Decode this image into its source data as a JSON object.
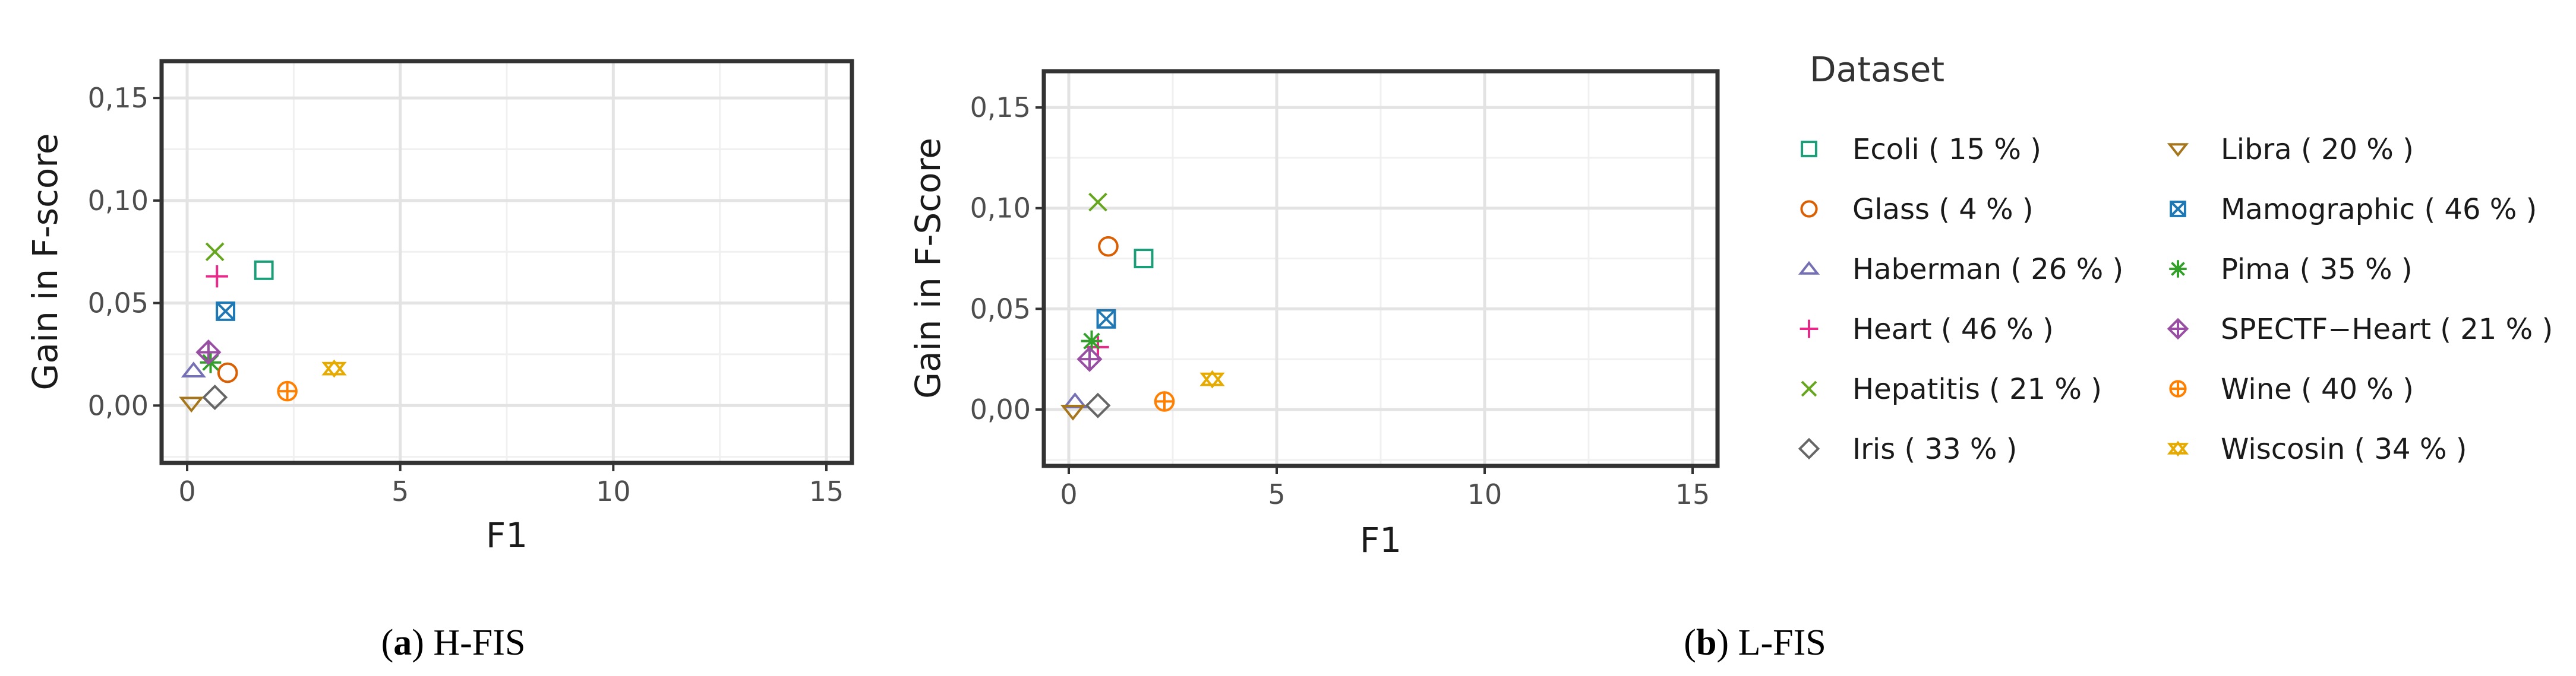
{
  "chart_data": [
    {
      "type": "scatter",
      "panel": "a",
      "caption_letter": "a",
      "caption_text": "H-FIS",
      "xlabel": "F1",
      "ylabel": "Gain in F-score",
      "xlim": [
        -0.6,
        15.6
      ],
      "ylim": [
        -0.028,
        0.168
      ],
      "x_ticks": [
        {
          "v": 0,
          "label": "0"
        },
        {
          "v": 5,
          "label": "5"
        },
        {
          "v": 10,
          "label": "10"
        },
        {
          "v": 15,
          "label": "15"
        }
      ],
      "y_ticks": [
        {
          "v": 0.0,
          "label": "0,00"
        },
        {
          "v": 0.05,
          "label": "0,05"
        },
        {
          "v": 0.1,
          "label": "0,10"
        },
        {
          "v": 0.15,
          "label": "0,15"
        }
      ],
      "grid": true,
      "points": [
        {
          "dataset": "Ecoli",
          "x": 1.8,
          "y": 0.066
        },
        {
          "dataset": "Glass",
          "x": 0.95,
          "y": 0.016
        },
        {
          "dataset": "Haberman",
          "x": 0.15,
          "y": 0.017
        },
        {
          "dataset": "Heart",
          "x": 0.7,
          "y": 0.063
        },
        {
          "dataset": "Hepatitis",
          "x": 0.65,
          "y": 0.075
        },
        {
          "dataset": "Iris",
          "x": 0.65,
          "y": 0.004
        },
        {
          "dataset": "Libra",
          "x": 0.1,
          "y": 0.001
        },
        {
          "dataset": "Mamographic",
          "x": 0.9,
          "y": 0.046
        },
        {
          "dataset": "Pima",
          "x": 0.55,
          "y": 0.021
        },
        {
          "dataset": "SPECTF-Heart",
          "x": 0.5,
          "y": 0.026
        },
        {
          "dataset": "Wine",
          "x": 2.35,
          "y": 0.007
        },
        {
          "dataset": "Wiscosin",
          "x": 3.45,
          "y": 0.018
        }
      ]
    },
    {
      "type": "scatter",
      "panel": "b",
      "caption_letter": "b",
      "caption_text": "L-FIS",
      "xlabel": "F1",
      "ylabel": "Gain in F-Score",
      "xlim": [
        -0.6,
        15.6
      ],
      "ylim": [
        -0.028,
        0.168
      ],
      "x_ticks": [
        {
          "v": 0,
          "label": "0"
        },
        {
          "v": 5,
          "label": "5"
        },
        {
          "v": 10,
          "label": "10"
        },
        {
          "v": 15,
          "label": "15"
        }
      ],
      "y_ticks": [
        {
          "v": 0.0,
          "label": "0,00"
        },
        {
          "v": 0.05,
          "label": "0,05"
        },
        {
          "v": 0.1,
          "label": "0,10"
        },
        {
          "v": 0.15,
          "label": "0,15"
        }
      ],
      "grid": true,
      "points": [
        {
          "dataset": "Ecoli",
          "x": 1.8,
          "y": 0.075
        },
        {
          "dataset": "Glass",
          "x": 0.95,
          "y": 0.081
        },
        {
          "dataset": "Haberman",
          "x": 0.15,
          "y": 0.004
        },
        {
          "dataset": "Heart",
          "x": 0.7,
          "y": 0.031
        },
        {
          "dataset": "Hepatitis",
          "x": 0.7,
          "y": 0.103
        },
        {
          "dataset": "Iris",
          "x": 0.7,
          "y": 0.002
        },
        {
          "dataset": "Libra",
          "x": 0.1,
          "y": -0.001
        },
        {
          "dataset": "Mamographic",
          "x": 0.9,
          "y": 0.045
        },
        {
          "dataset": "Pima",
          "x": 0.55,
          "y": 0.034
        },
        {
          "dataset": "SPECTF-Heart",
          "x": 0.5,
          "y": 0.025
        },
        {
          "dataset": "Wine",
          "x": 2.3,
          "y": 0.004
        },
        {
          "dataset": "Wiscosin",
          "x": 3.45,
          "y": 0.015
        }
      ]
    }
  ],
  "legend": {
    "title": "Dataset",
    "placement": "right",
    "items": [
      {
        "dataset": "Ecoli",
        "label": "Ecoli ( 15 % )",
        "shape": "square",
        "color": "#1b9e77"
      },
      {
        "dataset": "Glass",
        "label": "Glass ( 4 % )",
        "shape": "circle",
        "color": "#d95f02"
      },
      {
        "dataset": "Haberman",
        "label": "Haberman ( 26 % )",
        "shape": "triangle",
        "color": "#7570b3"
      },
      {
        "dataset": "Heart",
        "label": "Heart ( 46 % )",
        "shape": "plus",
        "color": "#e7298a"
      },
      {
        "dataset": "Hepatitis",
        "label": "Hepatitis ( 21 % )",
        "shape": "cross",
        "color": "#66a61e"
      },
      {
        "dataset": "Iris",
        "label": "Iris ( 33 % )",
        "shape": "diamond",
        "color": "#666666"
      },
      {
        "dataset": "Libra",
        "label": "Libra ( 20 % )",
        "shape": "triangle-down",
        "color": "#a6761d"
      },
      {
        "dataset": "Mamographic",
        "label": "Mamographic ( 46 % )",
        "shape": "square-cross",
        "color": "#1f78b4"
      },
      {
        "dataset": "Pima",
        "label": "Pima ( 35 % )",
        "shape": "asterisk",
        "color": "#33a02c"
      },
      {
        "dataset": "SPECTF-Heart",
        "label": "SPECTF−Heart ( 21 % )",
        "shape": "diamond-plus",
        "color": "#984ea3"
      },
      {
        "dataset": "Wine",
        "label": "Wine ( 40 % )",
        "shape": "circle-plus",
        "color": "#ff7f00"
      },
      {
        "dataset": "Wiscosin",
        "label": "Wiscosin ( 34 % )",
        "shape": "star-of-david",
        "color": "#e6ab02"
      }
    ]
  }
}
